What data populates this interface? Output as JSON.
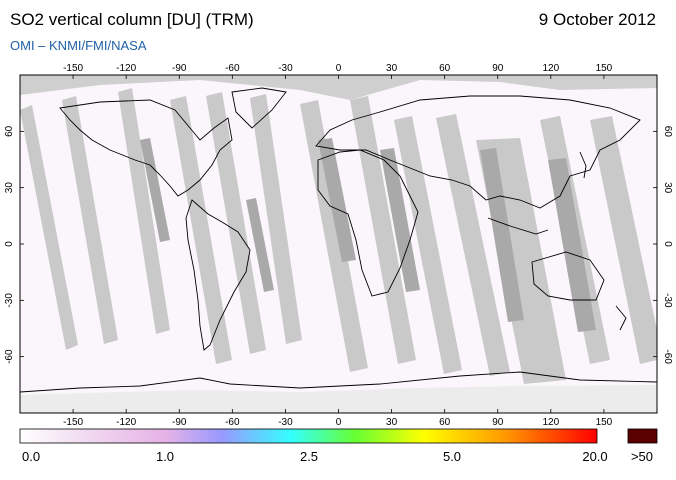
{
  "header": {
    "title": "SO2 vertical column [DU] (TRM)",
    "date": "9 October 2012",
    "credit": "OMI  –  KNMI/FMI/NASA"
  },
  "map": {
    "lon_ticks": [
      "-150",
      "-120",
      "-90",
      "-60",
      "-30",
      "0",
      "30",
      "60",
      "90",
      "120",
      "150"
    ],
    "lat_ticks": [
      "60",
      "30",
      "0",
      "-30",
      "-60"
    ]
  },
  "colorbar": {
    "labels": [
      "0.0",
      "1.0",
      "2.5",
      "5.0",
      "20.0"
    ],
    "overflow_label": ">50",
    "stops": [
      "#ffffff",
      "#f2dff2",
      "#e6b3e6",
      "#9999ff",
      "#33ffff",
      "#66ff33",
      "#ffff00",
      "#ff9900",
      "#ff0000"
    ],
    "overflow_color": "#5a0000"
  },
  "chart_data": {
    "type": "heatmap",
    "title": "SO2 vertical column [DU] (TRM)",
    "projection": "equirectangular",
    "xlim": [
      -180,
      180
    ],
    "ylim": [
      -90,
      90
    ],
    "x_ticks": [
      -150,
      -120,
      -90,
      -60,
      -30,
      0,
      30,
      60,
      90,
      120,
      150
    ],
    "y_ticks": [
      60,
      30,
      0,
      -30,
      -60
    ],
    "colorbar_ticks": [
      0.0,
      1.0,
      2.5,
      5.0,
      20.0
    ],
    "colorbar_overflow": ">50"
  }
}
